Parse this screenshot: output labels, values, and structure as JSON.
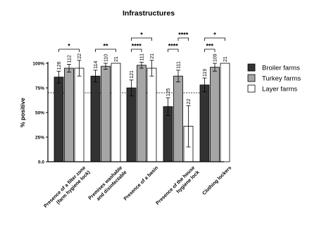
{
  "chart_data": {
    "type": "bar",
    "title": "Infrastructures",
    "ylabel": "% positive",
    "ylim": [
      0,
      100
    ],
    "yticks": [
      "0.0",
      "25%",
      "50%",
      "75%",
      "100%"
    ],
    "reference_line": 70,
    "legend_position": "right",
    "categories": [
      [
        "Presence of a filter zone",
        "(farm hygiene lock)"
      ],
      [
        "Premises washable",
        "and disinfectable"
      ],
      [
        "Presence of a basin"
      ],
      [
        "Presence of the house",
        "hygiene lock"
      ],
      [
        "Clothing lockers"
      ]
    ],
    "series": [
      {
        "name": "Broiler farms",
        "color": "#333333",
        "values": [
          86,
          87,
          75,
          56,
          78
        ],
        "err": [
          6,
          6,
          8,
          9,
          7
        ],
        "n": [
          "126",
          "114",
          "121",
          "125",
          "119"
        ]
      },
      {
        "name": "Turkey farms",
        "color": "#a6a6a6",
        "values": [
          95,
          97,
          98,
          87,
          96
        ],
        "err": [
          4,
          3,
          3,
          6,
          4
        ],
        "n": [
          "112",
          "110",
          "111",
          "111",
          "109"
        ]
      },
      {
        "name": "Layer farms",
        "color": "#ffffff",
        "values": [
          95,
          100,
          95,
          36,
          100
        ],
        "err": [
          8,
          0,
          8,
          21,
          0
        ],
        "n": [
          "22",
          "21",
          "21",
          "22",
          "21"
        ]
      }
    ],
    "significance": [
      {
        "category": 0,
        "from": 0,
        "to": 2,
        "label": "*"
      },
      {
        "category": 1,
        "from": 0,
        "to": 2,
        "label": "**"
      },
      {
        "category": 2,
        "from": 0,
        "to": 1,
        "label": "****"
      },
      {
        "category": 2,
        "from": 0,
        "to": 2,
        "label": "*"
      },
      {
        "category": 3,
        "from": 0,
        "to": 1,
        "label": "****"
      },
      {
        "category": 3,
        "from": 1,
        "to": 2,
        "label": "****"
      },
      {
        "category": 4,
        "from": 0,
        "to": 1,
        "label": "***"
      },
      {
        "category": 4,
        "from": 0,
        "to": 2,
        "label": "*"
      }
    ]
  }
}
